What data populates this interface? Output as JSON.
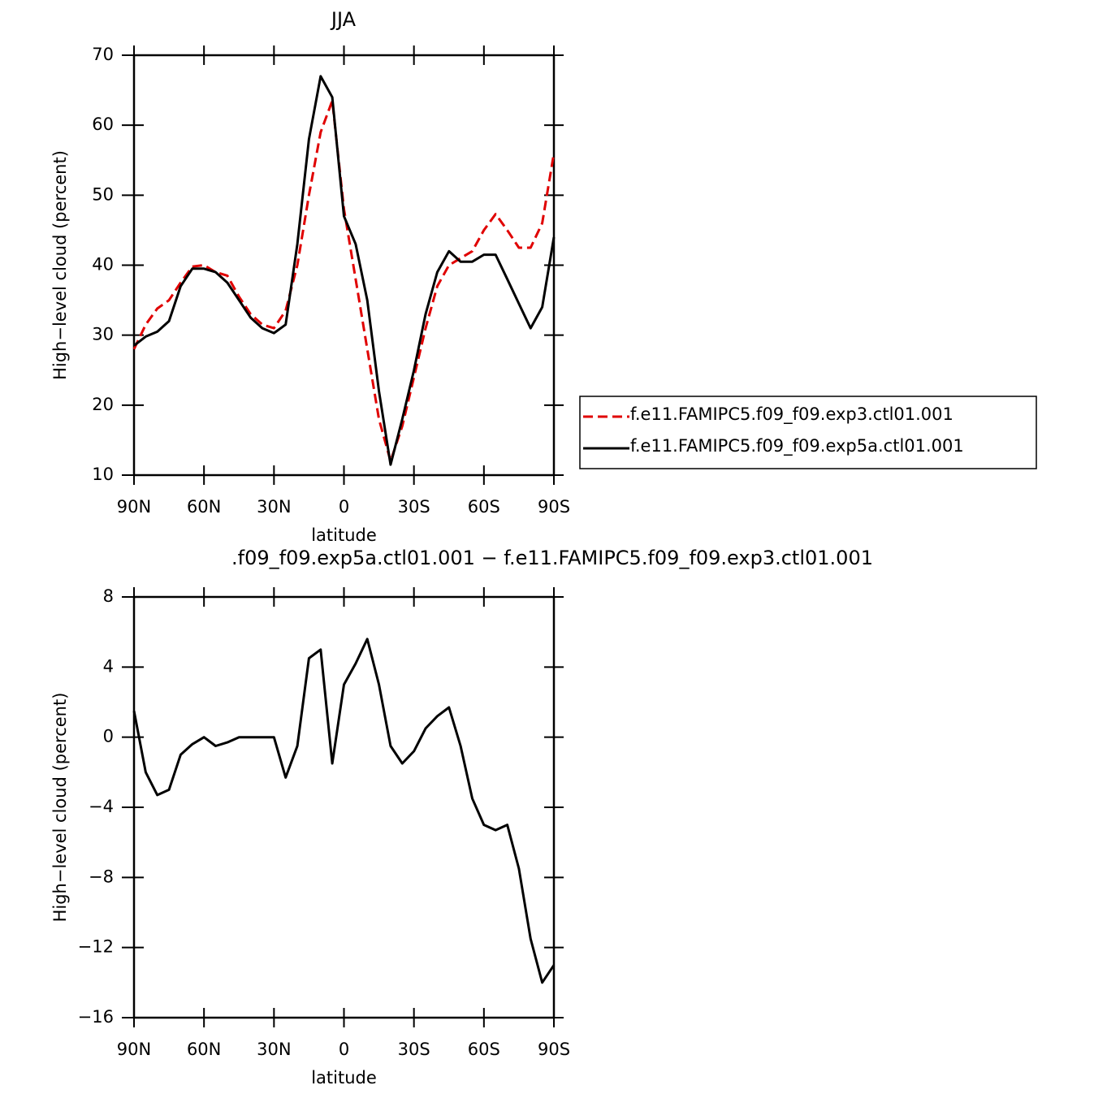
{
  "chart_data": [
    {
      "type": "line",
      "title": "JJA",
      "xlabel": "latitude",
      "ylabel": "High−level cloud (percent)",
      "x": [
        90,
        85,
        80,
        75,
        70,
        65,
        60,
        55,
        50,
        45,
        40,
        35,
        30,
        25,
        20,
        15,
        10,
        5,
        0,
        -5,
        -10,
        -15,
        -20,
        -25,
        -30,
        -35,
        -40,
        -45,
        -50,
        -55,
        -60,
        -65,
        -70,
        -75,
        -80,
        -85,
        -90
      ],
      "series": [
        {
          "name": "f.e11.FAMIPC5.f09_f09.exp3.ctl01.001",
          "color": "#e00000",
          "style": "dashed",
          "values": [
            28,
            31.5,
            33.8,
            35,
            37.5,
            39.8,
            40,
            39,
            38.5,
            35.5,
            33,
            31.5,
            31,
            33.5,
            40,
            50,
            59,
            63.5,
            48,
            38,
            28,
            18,
            12,
            17,
            24,
            31,
            37,
            40,
            41,
            42,
            45,
            47.3,
            45,
            42.5,
            42.5,
            46,
            56
          ]
        },
        {
          "name": "f.e11.FAMIPC5.f09_f09.exp5a.ctl01.001",
          "color": "#000000",
          "style": "solid",
          "values": [
            28.5,
            29.8,
            30.5,
            32,
            37,
            39.5,
            39.5,
            39,
            37.5,
            35,
            32.5,
            31,
            30.3,
            31.5,
            43,
            58,
            67,
            64,
            47,
            43,
            35,
            22,
            11.5,
            18,
            25,
            33,
            39,
            42,
            40.5,
            40.5,
            41.5,
            41.5,
            38,
            34.5,
            31,
            34,
            44
          ]
        }
      ],
      "xlim": [
        90,
        -90
      ],
      "xticks": [
        {
          "value": 90,
          "label": "90N"
        },
        {
          "value": 60,
          "label": "60N"
        },
        {
          "value": 30,
          "label": "30N"
        },
        0,
        {
          "value": -30,
          "label": "30S"
        },
        {
          "value": -60,
          "label": "60S"
        },
        {
          "value": -90,
          "label": "90S"
        }
      ],
      "ylim": [
        10,
        70
      ],
      "yticks": [
        10,
        20,
        30,
        40,
        50,
        60,
        70
      ],
      "legend": "right"
    },
    {
      "type": "line",
      "title": ".f09_f09.exp5a.ctl01.001  −  f.e11.FAMIPC5.f09_f09.exp3.ctl01.001",
      "xlabel": "latitude",
      "ylabel": "High−level cloud (percent)",
      "x": [
        90,
        85,
        80,
        75,
        70,
        65,
        60,
        55,
        50,
        45,
        40,
        35,
        30,
        25,
        20,
        15,
        10,
        5,
        0,
        -5,
        -10,
        -15,
        -20,
        -25,
        -30,
        -35,
        -40,
        -45,
        -50,
        -55,
        -60,
        -65,
        -70,
        -75,
        -80,
        -85,
        -90
      ],
      "color": "#000000",
      "values": [
        1.5,
        -2,
        -3.3,
        -3,
        -1,
        -0.4,
        0,
        -0.5,
        -0.3,
        0,
        0,
        0,
        0,
        -2.3,
        -0.5,
        4.5,
        5,
        -1.5,
        3,
        4.2,
        5.6,
        3,
        -0.5,
        -1.5,
        -0.8,
        0.5,
        1.2,
        1.7,
        -0.5,
        -3.5,
        -5,
        -5.3,
        -5,
        -7.5,
        -11.5,
        -14,
        -13
      ],
      "xlim": [
        90,
        -90
      ],
      "xticks": [
        {
          "value": 90,
          "label": "90N"
        },
        {
          "value": 60,
          "label": "60N"
        },
        {
          "value": 30,
          "label": "30N"
        },
        0,
        {
          "value": -30,
          "label": "30S"
        },
        {
          "value": -60,
          "label": "60S"
        },
        {
          "value": -90,
          "label": "90S"
        }
      ],
      "ylim": [
        -16,
        8
      ],
      "yticks": [
        {
          "value": -16,
          "label": "−16"
        },
        {
          "value": -12,
          "label": "−12"
        },
        {
          "value": -8,
          "label": "−8"
        },
        {
          "value": -4,
          "label": "−4"
        },
        0,
        4,
        8
      ]
    }
  ]
}
